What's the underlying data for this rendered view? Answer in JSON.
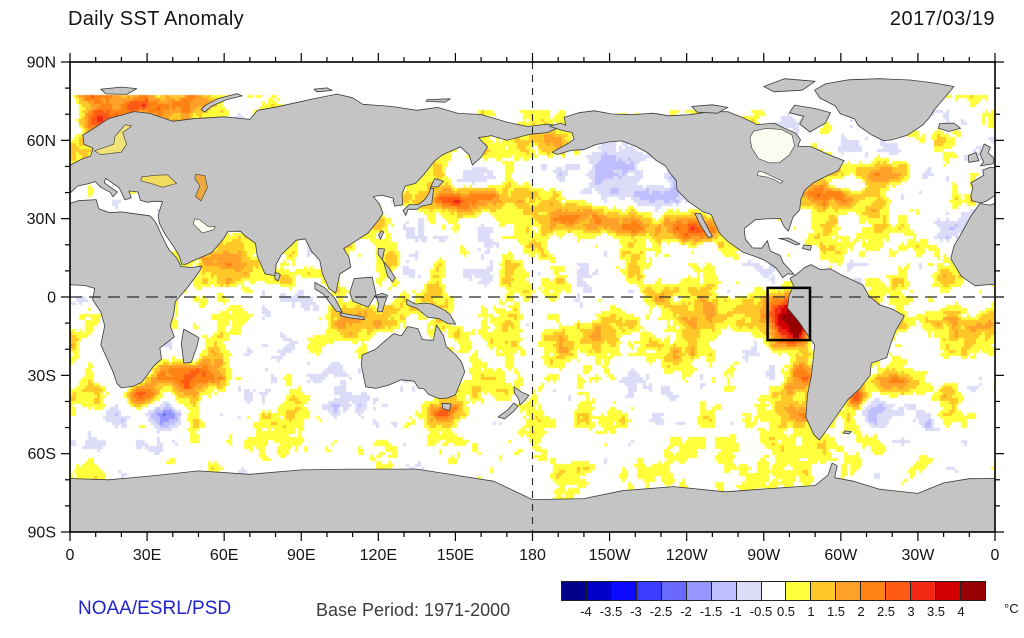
{
  "header": {
    "title": "Daily SST Anomaly",
    "date": "2017/03/19"
  },
  "footer": {
    "credit": "NOAA/ESRL/PSD",
    "base_period": "Base Period: 1971-2000",
    "credit_color": "#2222cc"
  },
  "chart_data": {
    "type": "heatmap",
    "title": "Daily SST Anomaly",
    "date": "2017/03/19",
    "projection": "equirectangular",
    "lon_range": [
      0,
      360
    ],
    "lat_range": [
      -90,
      90
    ],
    "x_tick_labels": [
      "0",
      "30E",
      "60E",
      "90E",
      "120E",
      "150E",
      "180",
      "150W",
      "120W",
      "90W",
      "60W",
      "30W",
      "0"
    ],
    "y_tick_labels": [
      "90N",
      "60N",
      "30N",
      "0",
      "30S",
      "60S",
      "90S"
    ],
    "grid_major_deg": 30,
    "grid_minor_deg": 10,
    "reference_lines": {
      "equator_lat": 0,
      "dateline_lon": 180
    },
    "highlight_box": {
      "name": "nino-1-2-region",
      "lon_min": 271.5,
      "lon_max": 288,
      "lat_min": -16.5,
      "lat_max": 3.5
    },
    "colorbar": {
      "units": "°C",
      "tick_labels": [
        "-4",
        "-3.5",
        "-3",
        "-2.5",
        "-2",
        "-1.5",
        "-1",
        "-0.5",
        "0.5",
        "1",
        "1.5",
        "2",
        "2.5",
        "3",
        "3.5",
        "4"
      ],
      "levels": [
        -4,
        -3.5,
        -3,
        -2.5,
        -2,
        -1.5,
        -1,
        -0.5,
        0.5,
        1,
        1.5,
        2,
        2.5,
        3,
        3.5,
        4
      ],
      "colors": [
        "#00008c",
        "#0000c8",
        "#0a0aff",
        "#3c3cff",
        "#6969ff",
        "#9696ff",
        "#bebeff",
        "#dcdcf8",
        "#ffffff",
        "#ffff3c",
        "#ffc828",
        "#ffa028",
        "#ff8214",
        "#ff5a14",
        "#f02814",
        "#d20000",
        "#960000"
      ]
    },
    "land_color": "#c4c4c4",
    "coast_color": "#3c3c3c",
    "ice_color": "#ffffff",
    "frame_color": "#000000",
    "anomaly_blobs": [
      [
        150,
        37,
        10,
        5,
        1.7
      ],
      [
        157,
        45,
        8,
        4,
        -1.1
      ],
      [
        173,
        38,
        16,
        6,
        1.2
      ],
      [
        200,
        31,
        18,
        6,
        1.1
      ],
      [
        227,
        26,
        16,
        6,
        1.2
      ],
      [
        244,
        24,
        8,
        5,
        1.7
      ],
      [
        185,
        58,
        16,
        6,
        0.9
      ],
      [
        212,
        49,
        20,
        8,
        -1.0
      ],
      [
        228,
        40,
        16,
        7,
        -0.8
      ],
      [
        197,
        20,
        16,
        6,
        -0.6
      ],
      [
        152,
        25,
        12,
        6,
        -0.5
      ],
      [
        185,
        -3,
        12,
        5,
        -0.55
      ],
      [
        255,
        -6,
        28,
        9,
        1.0
      ],
      [
        278,
        -7,
        8,
        8,
        2.8
      ],
      [
        283,
        -14,
        5,
        6,
        2.3
      ],
      [
        230,
        -26,
        26,
        8,
        0.9
      ],
      [
        203,
        -16,
        18,
        6,
        0.8
      ],
      [
        284,
        -32,
        7,
        7,
        1.6
      ],
      [
        285,
        -45,
        6,
        5,
        1.5
      ],
      [
        224,
        -33,
        12,
        5,
        -0.7
      ],
      [
        262,
        -57,
        28,
        6,
        0.6
      ],
      [
        155,
        -12,
        14,
        6,
        0.6
      ],
      [
        294,
        39,
        11,
        5,
        1.9
      ],
      [
        303,
        43,
        7,
        3,
        -1.6
      ],
      [
        315,
        47,
        10,
        4,
        1.2
      ],
      [
        317,
        57,
        13,
        5,
        -1.3
      ],
      [
        338,
        60,
        12,
        5,
        0.8
      ],
      [
        335,
        3,
        16,
        6,
        0.9
      ],
      [
        352,
        -12,
        10,
        6,
        0.8
      ],
      [
        345,
        27,
        12,
        6,
        -0.5
      ],
      [
        318,
        -42,
        13,
        6,
        -1.8
      ],
      [
        322,
        -33,
        15,
        5,
        1.1
      ],
      [
        306,
        -39,
        3,
        3,
        2.4
      ],
      [
        330,
        -53,
        18,
        5,
        -0.6
      ],
      [
        12,
        67,
        8,
        4,
        1.5
      ],
      [
        22,
        71,
        16,
        5,
        1.6
      ],
      [
        42,
        74,
        16,
        4,
        1.2
      ],
      [
        8,
        77,
        10,
        3,
        1.4
      ],
      [
        62,
        14,
        10,
        6,
        0.7
      ],
      [
        45,
        -32,
        20,
        7,
        1.5
      ],
      [
        33,
        -45,
        13,
        4,
        -1.5
      ],
      [
        27,
        -38,
        6,
        3,
        1.7
      ],
      [
        90,
        -30,
        20,
        9,
        -0.9
      ],
      [
        106,
        -43,
        14,
        6,
        -0.6
      ],
      [
        115,
        -6,
        14,
        5,
        0.6
      ],
      [
        146,
        -44,
        6,
        4,
        2.1
      ],
      [
        157,
        -37,
        10,
        6,
        0.9
      ],
      [
        88,
        13,
        8,
        5,
        -0.45
      ],
      [
        100,
        -60,
        28,
        5,
        0.4
      ],
      [
        20,
        -56,
        18,
        5,
        -0.5
      ]
    ],
    "noise": {
      "scales": [
        9.5,
        3.4,
        1.5
      ],
      "weights": [
        0.55,
        0.3,
        0.15
      ],
      "gain": 3.4,
      "warm_offset": 0.3
    }
  }
}
